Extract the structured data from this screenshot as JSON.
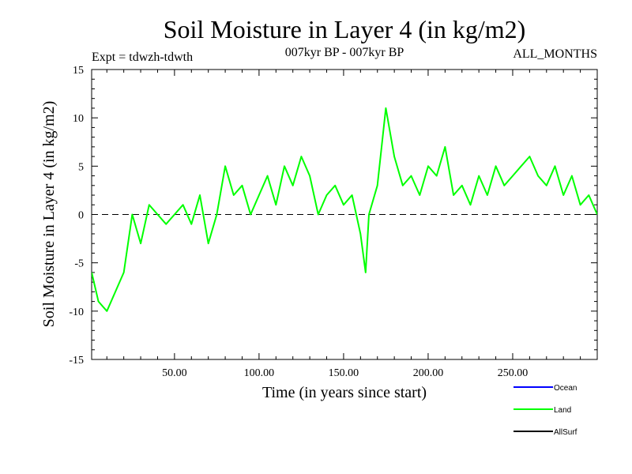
{
  "chart_data": {
    "type": "line",
    "title": "Soil Moisture in Layer 4 (in kg/m2)",
    "subtitle_left": "Expt = tdwzh-tdwth",
    "subtitle_center": "007kyr BP - 007kyr BP",
    "subtitle_right": "ALL_MONTHS",
    "xlabel": "Time (in years since start)",
    "ylabel": "Soil Moisture in Layer 4 (in kg/m2)",
    "xlim": [
      1,
      300
    ],
    "ylim": [
      -15,
      15
    ],
    "xticks": [
      50,
      100,
      150,
      200,
      250
    ],
    "xtick_labels": [
      "50.00",
      "100.00",
      "150.00",
      "200.00",
      "250.00"
    ],
    "yticks": [
      -15,
      -10,
      -5,
      0,
      5,
      10,
      15
    ],
    "ytick_labels": [
      "-15",
      "-10",
      "-5",
      "0",
      "5",
      "10",
      "15"
    ],
    "zero_line": true,
    "legend": [
      {
        "name": "Ocean",
        "color": "#0000ff"
      },
      {
        "name": "Land",
        "color": "#00ff00"
      },
      {
        "name": "AllSurf",
        "color": "#000000"
      }
    ],
    "series": [
      {
        "name": "Land",
        "color": "#00ff00",
        "x": [
          1,
          5,
          10,
          15,
          20,
          25,
          30,
          35,
          40,
          45,
          50,
          55,
          60,
          65,
          70,
          75,
          80,
          85,
          90,
          95,
          100,
          105,
          110,
          115,
          120,
          125,
          130,
          135,
          140,
          145,
          150,
          155,
          160,
          163,
          165,
          170,
          175,
          180,
          185,
          190,
          195,
          200,
          205,
          210,
          215,
          220,
          225,
          230,
          235,
          240,
          245,
          250,
          255,
          260,
          265,
          270,
          275,
          280,
          285,
          290,
          295,
          300
        ],
        "values": [
          -6,
          -9,
          -10,
          -8,
          -6,
          0,
          -3,
          1,
          0,
          -1,
          0,
          1,
          -1,
          2,
          -3,
          0,
          5,
          2,
          3,
          0,
          2,
          4,
          1,
          5,
          3,
          6,
          4,
          0,
          2,
          3,
          1,
          2,
          -2,
          -6,
          0,
          3,
          11,
          6,
          3,
          4,
          2,
          5,
          4,
          7,
          2,
          3,
          1,
          4,
          2,
          5,
          3,
          4,
          5,
          6,
          4,
          3,
          5,
          2,
          4,
          1,
          2,
          0
        ]
      }
    ]
  }
}
